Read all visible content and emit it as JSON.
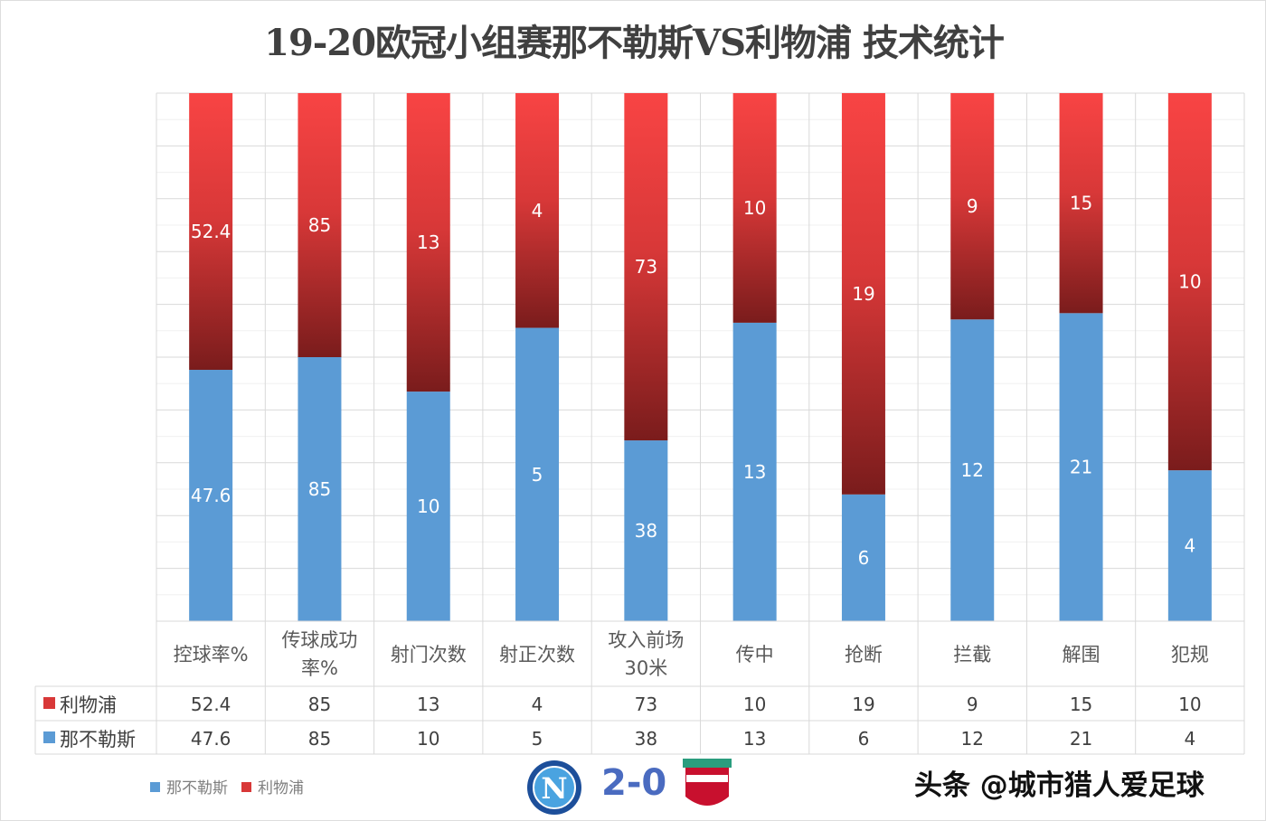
{
  "chart_data": {
    "type": "bar",
    "stacked": true,
    "normalized": true,
    "title": "19-20欧冠小组赛那不勒斯VS利物浦 技术统计",
    "categories": [
      "控球率%",
      "传球成功率%",
      "射门次数",
      "射正次数",
      "攻入前场30米",
      "传中",
      "抢断",
      "拦截",
      "解围",
      "犯规"
    ],
    "series": [
      {
        "name": "那不勒斯",
        "color": "#5b9bd5",
        "values": [
          47.6,
          85,
          10,
          5,
          38,
          13,
          6,
          12,
          21,
          4
        ]
      },
      {
        "name": "利物浦",
        "color": "#e84040",
        "values": [
          52.4,
          85,
          13,
          4,
          73,
          10,
          19,
          9,
          15,
          10
        ]
      }
    ],
    "ylim": [
      0,
      100
    ],
    "grid": true,
    "legend": "bottom-left",
    "data_table": true
  },
  "footer": {
    "score": "2-0",
    "watermark": "头条 @城市猎人爱足球",
    "home_logo": "napoli-crest",
    "away_logo": "liverpool-crest"
  }
}
